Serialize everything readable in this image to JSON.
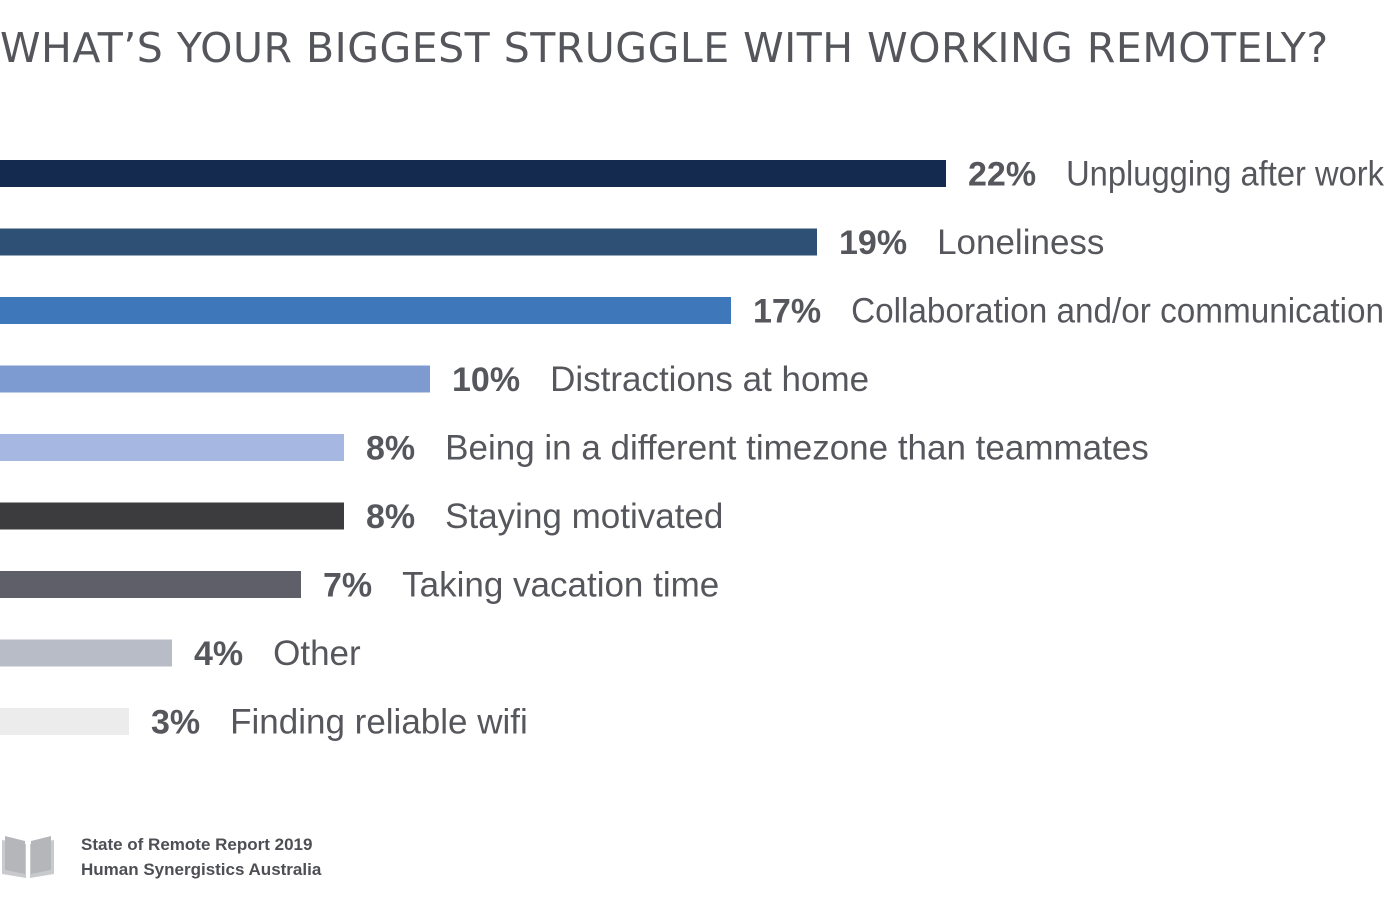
{
  "title": "WHAT’S YOUR BIGGEST STRUGGLE WITH WORKING REMOTELY?",
  "chart_data": {
    "type": "bar",
    "orientation": "horizontal",
    "title": "WHAT’S YOUR BIGGEST STRUGGLE WITH WORKING REMOTELY?",
    "unit": "%",
    "categories": [
      "Unplugging after work",
      "Loneliness",
      "Collaboration and/or communication",
      "Distractions at home",
      "Being in a different timezone than teammates",
      "Staying motivated",
      "Taking vacation time",
      "Other",
      "Finding reliable wifi"
    ],
    "values": [
      22,
      19,
      17,
      10,
      8,
      8,
      7,
      4,
      3
    ],
    "value_labels": [
      "22%",
      "19%",
      "17%",
      "10%",
      "8%",
      "8%",
      "7%",
      "4%",
      "3%"
    ],
    "colors": [
      "#142a4e",
      "#2f5075",
      "#3f77bb",
      "#7e9bd1",
      "#a6b8e1",
      "#3c3c3f",
      "#5f5f69",
      "#b7bcc7",
      "#ececec"
    ],
    "grid": false,
    "legend": "none"
  },
  "footer": {
    "icon": "book-icon",
    "source_line_1": "State of Remote Report 2019",
    "source_line_2": "Human Synergistics Australia"
  }
}
